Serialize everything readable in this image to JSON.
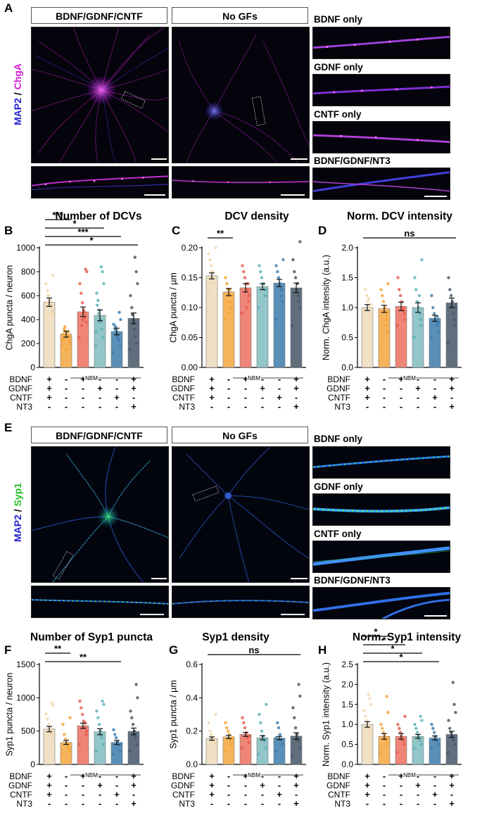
{
  "panel_letters": {
    "A": "A",
    "B": "B",
    "C": "C",
    "D": "D",
    "E": "E",
    "F": "F",
    "G": "G",
    "H": "H"
  },
  "imaging": {
    "A": {
      "header_left": "BDNF/GDNF/CNTF",
      "header_mid": "No GFs",
      "side_labels": [
        "BDNF only",
        "GDNF only",
        "CNTF only",
        "BDNF/GDNF/NT3"
      ],
      "marker1": "MAP2",
      "sep": " / ",
      "marker2": "ChgA",
      "colors": {
        "marker1": "#2222cc",
        "marker2": "#d21ad2"
      }
    },
    "E": {
      "header_left": "BDNF/GDNF/CNTF",
      "header_mid": "No GFs",
      "side_labels": [
        "BDNF only",
        "GDNF only",
        "CNTF only",
        "BDNF/GDNF/NT3"
      ],
      "marker1": "MAP2",
      "sep": " / ",
      "marker2": "Syp1",
      "colors": {
        "marker1": "#2222cc",
        "marker2": "#1fbf1f"
      }
    }
  },
  "condition_table": {
    "rows": [
      "BDNF",
      "GDNF",
      "CNTF",
      "NT3"
    ],
    "matrix": [
      [
        "+",
        "-",
        "+",
        "-",
        "-",
        "+"
      ],
      [
        "+",
        "-",
        "-",
        "+",
        "-",
        "+"
      ],
      [
        "+",
        "-",
        "-",
        "-",
        "+",
        "-"
      ],
      [
        "-",
        "-",
        "-",
        "-",
        "-",
        "+"
      ]
    ],
    "medium": "NBM"
  },
  "bar_colors": [
    "#efe0c6",
    "#f5b45b",
    "#ef8577",
    "#93c6c8",
    "#5a8fb8",
    "#5f6f7e"
  ],
  "dot_colors": [
    "#f2d8b0",
    "#f5a63a",
    "#e85e50",
    "#5fb3b8",
    "#3f7fb0",
    "#4a5a6a"
  ],
  "chart_data": [
    {
      "id": "B",
      "type": "bar",
      "title": "Number of DCVs",
      "ylabel": "ChgA puncta / neuron",
      "ylim": [
        0,
        1000
      ],
      "yticks": [
        "0",
        "200",
        "400",
        "600",
        "800",
        "1000"
      ],
      "ytick_values": [
        0,
        200,
        400,
        600,
        800,
        1000
      ],
      "values": [
        545,
        278,
        465,
        435,
        300,
        410
      ],
      "errors": [
        35,
        25,
        40,
        45,
        28,
        45
      ],
      "points": [
        [
          420,
          480,
          520,
          560,
          600,
          640,
          700,
          770,
          520,
          450,
          380,
          600,
          540,
          500,
          460
        ],
        [
          180,
          220,
          260,
          280,
          300,
          320,
          240,
          200,
          300,
          260,
          150,
          340,
          280,
          220
        ],
        [
          250,
          380,
          420,
          480,
          540,
          620,
          700,
          800,
          820,
          460,
          400,
          350
        ],
        [
          180,
          250,
          320,
          400,
          480,
          560,
          620,
          700,
          800,
          840,
          380,
          450,
          520,
          300
        ],
        [
          120,
          180,
          220,
          260,
          300,
          320,
          360,
          400,
          460,
          240,
          280,
          340
        ],
        [
          150,
          200,
          260,
          320,
          400,
          500,
          600,
          700,
          800,
          920,
          380,
          440
        ]
      ],
      "sig": [
        {
          "a": 0,
          "b": 1,
          "label": "***"
        },
        {
          "a": 0,
          "b": 3,
          "label": "*"
        },
        {
          "a": 0,
          "b": 4,
          "label": "***"
        },
        {
          "a": 0,
          "b": 5,
          "label": "*"
        }
      ]
    },
    {
      "id": "C",
      "type": "bar",
      "title": "DCV density",
      "ylabel": "ChgA puncta / µm",
      "ylim": [
        0,
        0.2
      ],
      "yticks": [
        "0.00",
        "0.05",
        "0.10",
        "0.15",
        "0.20"
      ],
      "ytick_values": [
        0,
        0.05,
        0.1,
        0.15,
        0.2
      ],
      "values": [
        0.153,
        0.126,
        0.133,
        0.135,
        0.141,
        0.133
      ],
      "errors": [
        0.005,
        0.006,
        0.007,
        0.005,
        0.006,
        0.008
      ],
      "points": [
        [
          0.13,
          0.14,
          0.15,
          0.16,
          0.17,
          0.18,
          0.19,
          0.2,
          0.15,
          0.14,
          0.16,
          0.12
        ],
        [
          0.08,
          0.1,
          0.11,
          0.12,
          0.13,
          0.14,
          0.15,
          0.12,
          0.1,
          0.13,
          0.09,
          0.11
        ],
        [
          0.09,
          0.11,
          0.13,
          0.14,
          0.15,
          0.16,
          0.17,
          0.12,
          0.14,
          0.1
        ],
        [
          0.1,
          0.12,
          0.13,
          0.14,
          0.15,
          0.16,
          0.17,
          0.13,
          0.12,
          0.14
        ],
        [
          0.08,
          0.11,
          0.13,
          0.14,
          0.15,
          0.16,
          0.17,
          0.18,
          0.13,
          0.12
        ],
        [
          0.07,
          0.1,
          0.12,
          0.13,
          0.15,
          0.16,
          0.18,
          0.21,
          0.11,
          0.14
        ]
      ],
      "sig": [
        {
          "a": 0,
          "b": 1,
          "label": "**"
        }
      ]
    },
    {
      "id": "D",
      "type": "bar",
      "title": "Norm. DCV intensity",
      "ylabel": "Norm. ChgA intensity (a.u.)",
      "ylim": [
        0,
        2.0
      ],
      "yticks": [
        "0.0",
        "0.5",
        "1.0",
        "1.5",
        "2.0"
      ],
      "ytick_values": [
        0,
        0.5,
        1,
        1.5,
        2
      ],
      "values": [
        1.0,
        0.98,
        1.02,
        1.0,
        0.82,
        1.08
      ],
      "errors": [
        0.05,
        0.06,
        0.07,
        0.08,
        0.05,
        0.08
      ],
      "points": [
        [
          0.8,
          0.9,
          1.0,
          1.1,
          1.2,
          1.3,
          0.95,
          1.05,
          0.85,
          1.15
        ],
        [
          0.3,
          0.6,
          0.8,
          1.0,
          1.1,
          1.2,
          1.3,
          1.4,
          0.9,
          0.7
        ],
        [
          0.7,
          0.9,
          1.0,
          1.1,
          1.2,
          1.3,
          1.5,
          0.8,
          0.95
        ],
        [
          0.5,
          0.7,
          0.9,
          1.0,
          1.1,
          1.3,
          1.5,
          1.8,
          0.8,
          1.2
        ],
        [
          0.5,
          0.6,
          0.7,
          0.8,
          0.9,
          1.0,
          1.2,
          0.75,
          0.85
        ],
        [
          0.4,
          0.7,
          0.9,
          1.1,
          1.2,
          1.3,
          1.5,
          1.0,
          0.8
        ]
      ],
      "sig": [
        {
          "a": 0,
          "b": 5,
          "label": "ns"
        }
      ]
    },
    {
      "id": "F",
      "type": "bar",
      "title": "Number of Syp1 puncta",
      "ylabel": "Syp1 puncta / neuron",
      "ylim": [
        0,
        1500
      ],
      "yticks": [
        "0",
        "500",
        "1000",
        "1500"
      ],
      "ytick_values": [
        0,
        500,
        1000,
        1500
      ],
      "values": [
        530,
        330,
        580,
        490,
        330,
        495
      ],
      "errors": [
        40,
        30,
        40,
        45,
        30,
        50
      ],
      "points": [
        [
          350,
          420,
          480,
          530,
          600,
          680,
          760,
          880,
          920,
          300,
          450
        ],
        [
          150,
          200,
          260,
          320,
          380,
          450,
          600,
          700,
          250
        ],
        [
          300,
          450,
          550,
          650,
          750,
          850,
          950,
          500,
          620
        ],
        [
          200,
          300,
          400,
          500,
          600,
          700,
          800,
          900,
          950,
          450
        ],
        [
          150,
          200,
          280,
          340,
          400,
          450,
          520,
          300
        ],
        [
          200,
          300,
          400,
          500,
          600,
          700,
          800,
          1000,
          1200,
          450
        ]
      ],
      "sig": [
        {
          "a": 0,
          "b": 1,
          "label": "**"
        },
        {
          "a": 0,
          "b": 4,
          "label": "**"
        }
      ]
    },
    {
      "id": "G",
      "type": "bar",
      "title": "Syp1 density",
      "ylabel": "Syp1 puncta / µm",
      "ylim": [
        0,
        0.6
      ],
      "yticks": [
        "0.0",
        "0.2",
        "0.4",
        "0.6"
      ],
      "ytick_values": [
        0,
        0.2,
        0.4,
        0.6
      ],
      "values": [
        0.155,
        0.165,
        0.18,
        0.16,
        0.158,
        0.17
      ],
      "errors": [
        0.01,
        0.01,
        0.012,
        0.012,
        0.01,
        0.02
      ],
      "points": [
        [
          0.1,
          0.12,
          0.14,
          0.16,
          0.18,
          0.2,
          0.25,
          0.3,
          0.15
        ],
        [
          0.08,
          0.12,
          0.15,
          0.18,
          0.2,
          0.22,
          0.25,
          0.16
        ],
        [
          0.1,
          0.13,
          0.16,
          0.19,
          0.22,
          0.25,
          0.28,
          0.17
        ],
        [
          0.06,
          0.1,
          0.14,
          0.17,
          0.2,
          0.25,
          0.3,
          0.36,
          0.15
        ],
        [
          0.08,
          0.12,
          0.15,
          0.18,
          0.22,
          0.25,
          0.16
        ],
        [
          0.05,
          0.1,
          0.14,
          0.18,
          0.22,
          0.28,
          0.34,
          0.41,
          0.48,
          0.16
        ]
      ],
      "sig": [
        {
          "a": 0,
          "b": 5,
          "label": "ns"
        }
      ]
    },
    {
      "id": "H",
      "type": "bar",
      "title": "Norm. Syp1 intensity",
      "ylabel": "Norm. Syp1 intensity (a.u.)",
      "ylim": [
        0,
        2.5
      ],
      "yticks": [
        "0.0",
        "0.5",
        "1.0",
        "1.5",
        "2.0",
        "2.5"
      ],
      "ytick_values": [
        0,
        0.5,
        1,
        1.5,
        2,
        2.5
      ],
      "values": [
        1.0,
        0.7,
        0.7,
        0.7,
        0.66,
        0.75
      ],
      "errors": [
        0.07,
        0.07,
        0.07,
        0.05,
        0.05,
        0.08
      ],
      "points": [
        [
          0.6,
          0.8,
          0.9,
          1.0,
          1.1,
          1.2,
          1.35,
          1.5,
          1.65,
          1.75
        ],
        [
          0.3,
          0.5,
          0.6,
          0.7,
          0.8,
          0.9,
          1.0,
          1.3,
          1.7
        ],
        [
          0.3,
          0.5,
          0.6,
          0.7,
          0.8,
          0.9,
          1.0,
          1.2
        ],
        [
          0.4,
          0.5,
          0.6,
          0.7,
          0.8,
          0.9,
          1.0,
          1.1,
          1.2
        ],
        [
          0.4,
          0.5,
          0.6,
          0.7,
          0.8,
          0.9,
          1.0
        ],
        [
          0.3,
          0.5,
          0.6,
          0.7,
          0.8,
          0.9,
          1.1,
          1.3,
          1.5,
          2.05
        ]
      ],
      "sig": [
        {
          "a": 0,
          "b": 1,
          "label": "*"
        },
        {
          "a": 0,
          "b": 2,
          "label": "*"
        },
        {
          "a": 0,
          "b": 3,
          "label": "*"
        },
        {
          "a": 0,
          "b": 4,
          "label": "*"
        }
      ]
    }
  ]
}
